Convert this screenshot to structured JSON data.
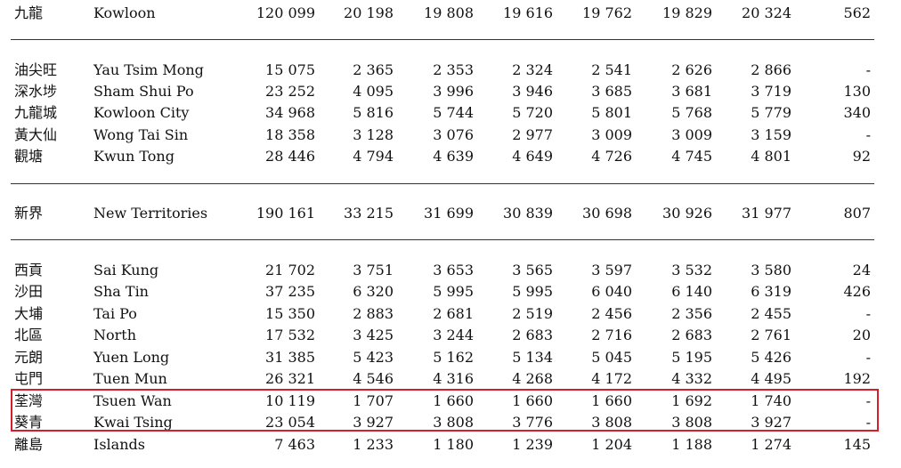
{
  "rows": [
    {
      "zh": "九龍",
      "en": "Kowloon",
      "v": [
        "120 099",
        "20 198",
        "19 808",
        "19 616",
        "19 762",
        "19 829",
        "20 324",
        "562"
      ]
    },
    {
      "zh": "油尖旺",
      "en": "Yau Tsim Mong",
      "v": [
        "15 075",
        "2 365",
        "2 353",
        "2 324",
        "2 541",
        "2 626",
        "2 866",
        "-"
      ]
    },
    {
      "zh": "深水埗",
      "en": "Sham Shui Po",
      "v": [
        "23 252",
        "4 095",
        "3 996",
        "3 946",
        "3 685",
        "3 681",
        "3 719",
        "130"
      ]
    },
    {
      "zh": "九龍城",
      "en": "Kowloon City",
      "v": [
        "34 968",
        "5 816",
        "5 744",
        "5 720",
        "5 801",
        "5 768",
        "5 779",
        "340"
      ]
    },
    {
      "zh": "黃大仙",
      "en": "Wong Tai Sin",
      "v": [
        "18 358",
        "3 128",
        "3 076",
        "2 977",
        "3 009",
        "3 009",
        "3 159",
        "-"
      ]
    },
    {
      "zh": "觀塘",
      "en": "Kwun Tong",
      "v": [
        "28 446",
        "4 794",
        "4 639",
        "4 649",
        "4 726",
        "4 745",
        "4 801",
        "92"
      ]
    },
    {
      "zh": "新界",
      "en": "New Territories",
      "v": [
        "190 161",
        "33 215",
        "31 699",
        "30 839",
        "30 698",
        "30 926",
        "31 977",
        "807"
      ]
    },
    {
      "zh": "西貢",
      "en": "Sai Kung",
      "v": [
        "21 702",
        "3 751",
        "3 653",
        "3 565",
        "3 597",
        "3 532",
        "3 580",
        "24"
      ]
    },
    {
      "zh": "沙田",
      "en": "Sha Tin",
      "v": [
        "37 235",
        "6 320",
        "5 995",
        "5 995",
        "6 040",
        "6 140",
        "6 319",
        "426"
      ]
    },
    {
      "zh": "大埔",
      "en": "Tai Po",
      "v": [
        "15 350",
        "2 883",
        "2 681",
        "2 519",
        "2 456",
        "2 356",
        "2 455",
        "-"
      ]
    },
    {
      "zh": "北區",
      "en": "North",
      "v": [
        "17 532",
        "3 425",
        "3 244",
        "2 683",
        "2 716",
        "2 683",
        "2 761",
        "20"
      ]
    },
    {
      "zh": "元朗",
      "en": "Yuen Long",
      "v": [
        "31 385",
        "5 423",
        "5 162",
        "5 134",
        "5 045",
        "5 195",
        "5 426",
        "-"
      ]
    },
    {
      "zh": "屯門",
      "en": "Tuen Mun",
      "v": [
        "26 321",
        "4 546",
        "4 316",
        "4 268",
        "4 172",
        "4 332",
        "4 495",
        "192"
      ]
    },
    {
      "zh": "荃灣",
      "en": "Tsuen Wan",
      "v": [
        "10 119",
        "1 707",
        "1 660",
        "1 660",
        "1 660",
        "1 692",
        "1 740",
        "-"
      ]
    },
    {
      "zh": "葵青",
      "en": "Kwai Tsing",
      "v": [
        "23 054",
        "3 927",
        "3 808",
        "3 776",
        "3 808",
        "3 808",
        "3 927",
        "-"
      ]
    },
    {
      "zh": "離島",
      "en": "Islands",
      "v": [
        "7 463",
        "1 233",
        "1 180",
        "1 239",
        "1 204",
        "1 188",
        "1 274",
        "145"
      ]
    }
  ],
  "highlight_color": "#d21f2a",
  "rule_color": "#333333"
}
